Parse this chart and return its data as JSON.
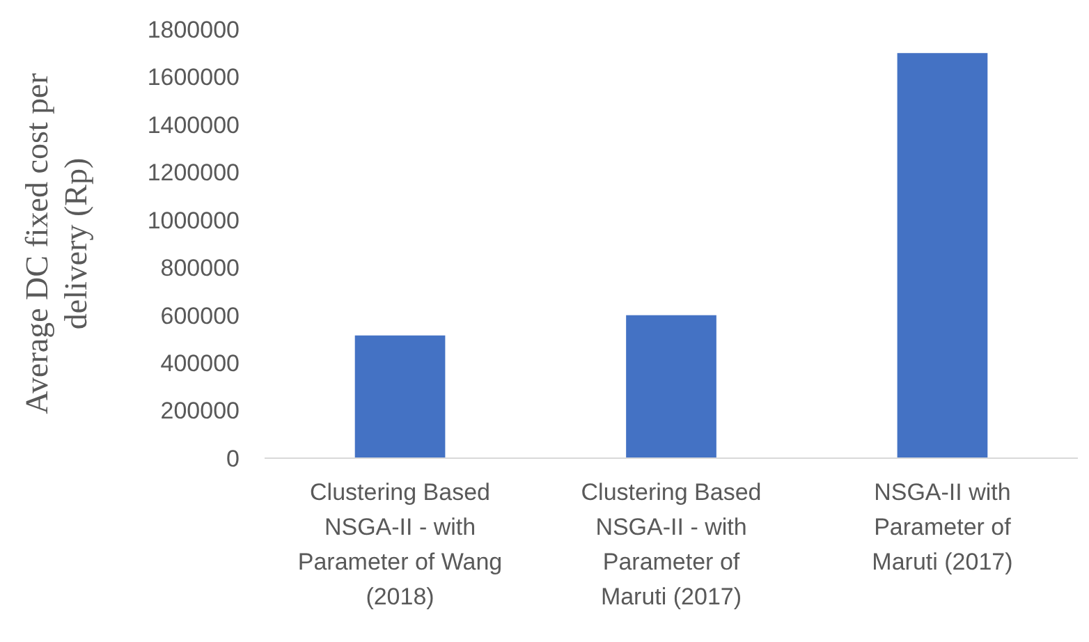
{
  "chart_data": {
    "type": "bar",
    "ylabel": "Average DC fixed cost per delivery (Rp)",
    "categories": [
      "Clustering Based NSGA-II - with Parameter of Wang (2018)",
      "Clustering Based NSGA-II - with Parameter of Maruti (2017)",
      "NSGA-II with Parameter of Maruti (2017)"
    ],
    "values": [
      515000,
      600000,
      1700000
    ],
    "color": "#4472c4",
    "ylim": [
      0,
      1800000
    ],
    "yticks": [
      0,
      200000,
      400000,
      600000,
      800000,
      1000000,
      1200000,
      1400000,
      1600000,
      1800000
    ],
    "grid": false
  }
}
